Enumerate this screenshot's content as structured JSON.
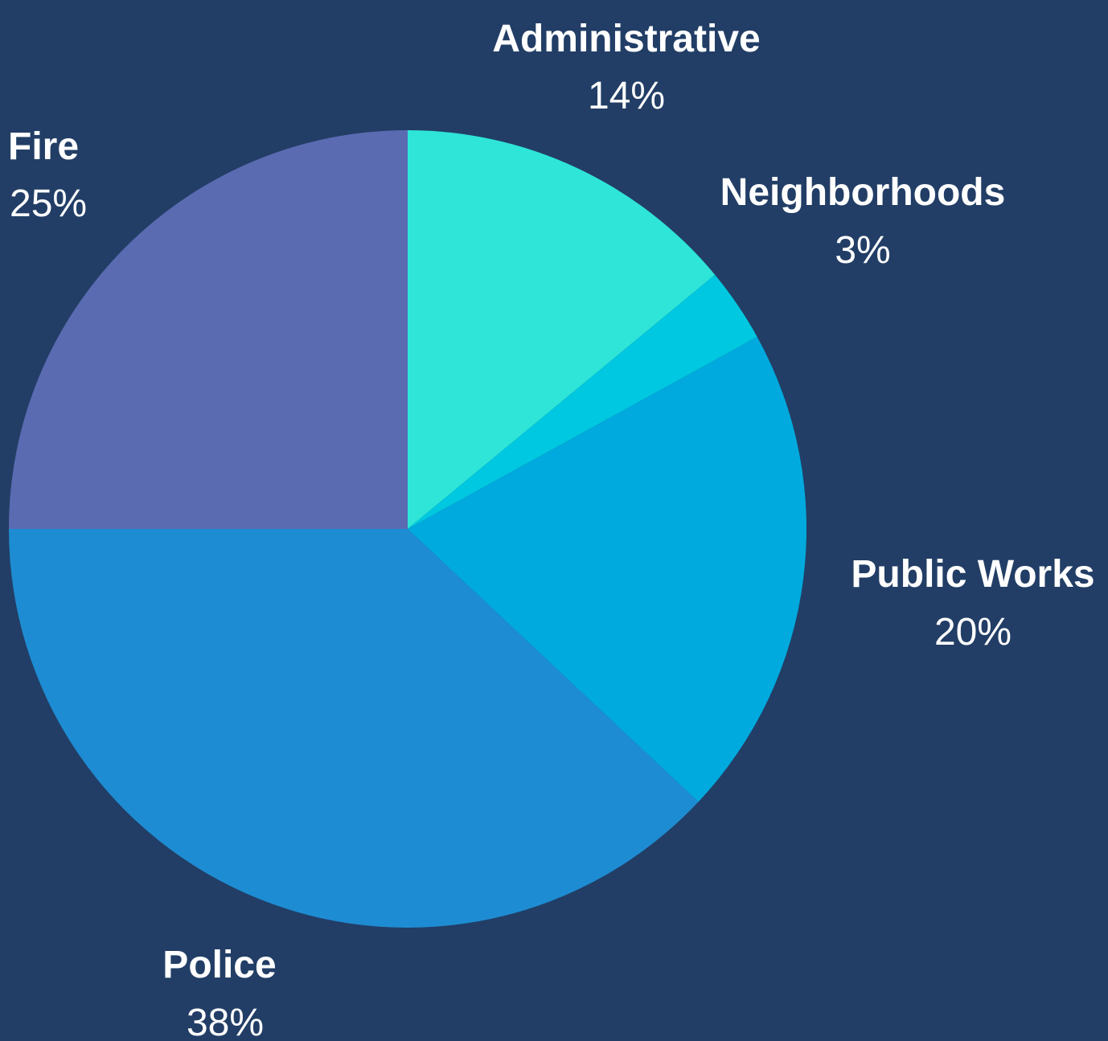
{
  "background_color": "#223e66",
  "chart_data": {
    "type": "pie",
    "title": "",
    "legend": "none",
    "start_angle_deg": 0,
    "direction": "clockwise",
    "slices": [
      {
        "label": "Administrative",
        "value": 14,
        "value_label": "14%",
        "color": "#2ee5d8"
      },
      {
        "label": "Neighborhoods",
        "value": 3,
        "value_label": "3%",
        "color": "#00c8e0"
      },
      {
        "label": "Public Works",
        "value": 20,
        "value_label": "20%",
        "color": "#00aade"
      },
      {
        "label": "Police",
        "value": 38,
        "value_label": "38%",
        "color": "#1e8cd2"
      },
      {
        "label": "Fire",
        "value": 25,
        "value_label": "25%",
        "color": "#5b6bb2"
      }
    ]
  }
}
